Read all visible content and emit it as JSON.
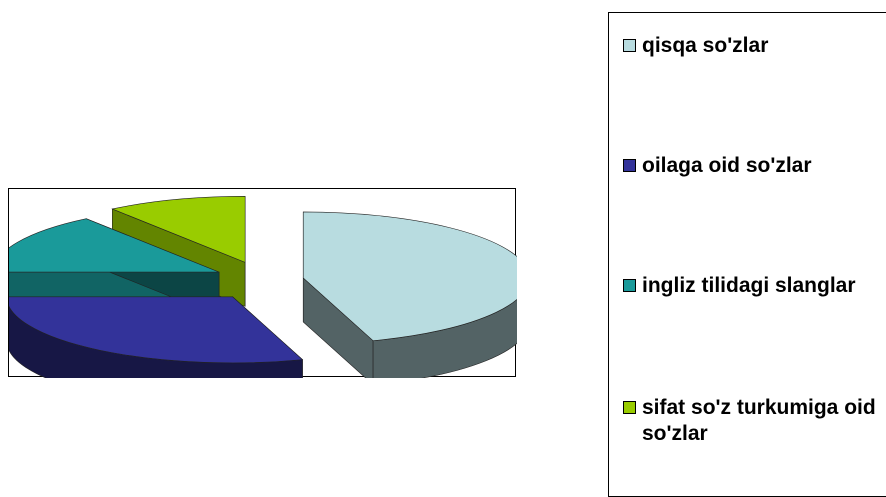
{
  "chart_data": {
    "type": "pie",
    "title": "",
    "legend_placement": "right",
    "categories": [
      "qisqa so'zlar",
      "oilaga oid so'zlar",
      "ingliz tilidagi slanglar",
      "sifat so'z turkumiga oid so'zlar"
    ],
    "values": [
      45,
      30,
      15,
      10
    ],
    "colors": [
      "#b8dce0",
      "#33339a",
      "#1a9a9a",
      "#99cc00"
    ]
  }
}
